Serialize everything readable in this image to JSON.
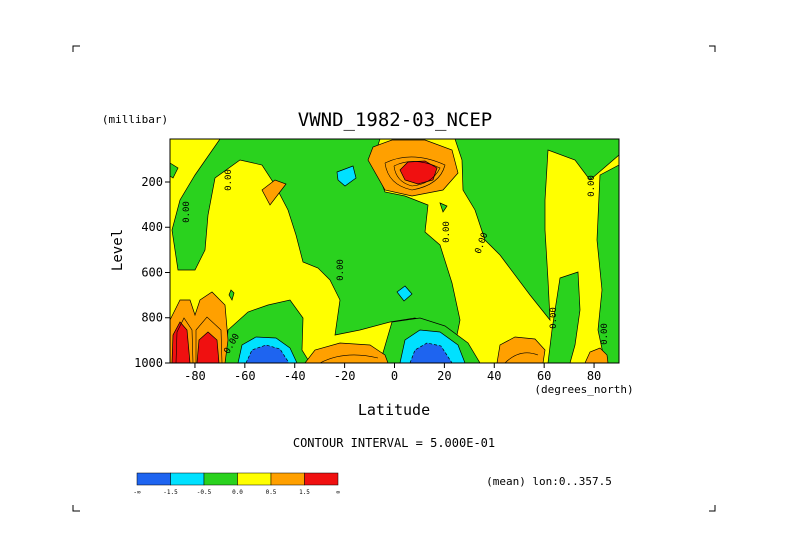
{
  "chart_data": {
    "type": "contour",
    "title": "VWND_1982-03_NCEP",
    "xlabel": "Latitude",
    "ylabel": "Level",
    "x_units": "(degrees_north)",
    "y_units": "(millibar)",
    "xlim": [
      -90,
      90
    ],
    "ylim": [
      1000,
      10
    ],
    "x_ticks": [
      "-80",
      "-60",
      "-40",
      "-20",
      "0",
      "20",
      "40",
      "60",
      "80"
    ],
    "y_ticks": [
      "200",
      "400",
      "600",
      "800",
      "1000"
    ],
    "contour_interval_text": "CONTOUR INTERVAL = 5.000E-01",
    "contour_label": "0.00",
    "averaging_note": "(mean) lon:0..357.5",
    "colorbar": {
      "labels": [
        "-∞",
        "-1.5",
        "-0.5",
        "0.0",
        "0.5",
        "1.5",
        "∞"
      ],
      "colors": [
        "#1e64f0",
        "#00e1ff",
        "#2ad21e",
        "#ffff00",
        "#ffa000",
        "#f01010"
      ]
    },
    "colors": {
      "yellow": "#ffff00",
      "green": "#2ad21e",
      "cyan": "#00e1ff",
      "blue": "#1e64f0",
      "orange": "#ffa000",
      "red": "#f01010"
    }
  }
}
